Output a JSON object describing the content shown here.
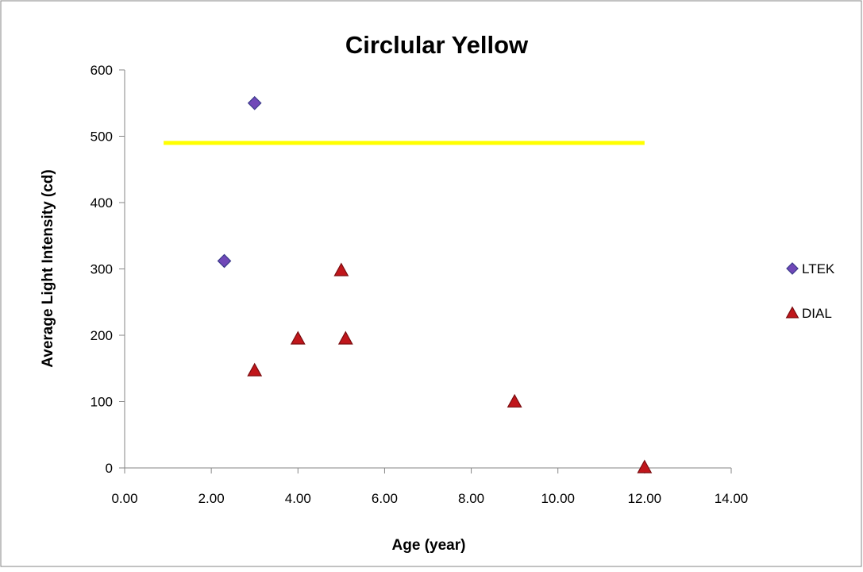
{
  "chart_data": {
    "type": "scatter",
    "title": "Circlular Yellow",
    "xlabel": "Age (year)",
    "ylabel": "Average Light Intensity (cd)",
    "xlim": [
      0,
      14
    ],
    "ylim": [
      0,
      600
    ],
    "x_ticks": [
      "0.00",
      "2.00",
      "4.00",
      "6.00",
      "8.00",
      "10.00",
      "12.00",
      "14.00"
    ],
    "y_ticks": [
      "0",
      "100",
      "200",
      "300",
      "400",
      "500",
      "600"
    ],
    "grid": false,
    "legend_position": "right",
    "series": [
      {
        "name": "LTEK",
        "marker": "diamond",
        "color": "#7048b8",
        "points": [
          {
            "x": 2.3,
            "y": 312
          },
          {
            "x": 3.0,
            "y": 550
          }
        ]
      },
      {
        "name": "DIAL",
        "marker": "triangle",
        "color": "#c0161b",
        "points": [
          {
            "x": 3.0,
            "y": 147
          },
          {
            "x": 4.0,
            "y": 195
          },
          {
            "x": 5.0,
            "y": 298
          },
          {
            "x": 5.1,
            "y": 195
          },
          {
            "x": 9.0,
            "y": 100
          },
          {
            "x": 12.0,
            "y": 1
          }
        ]
      }
    ],
    "reference_line": {
      "color": "#ffff00",
      "y": 490,
      "x_start": 0.9,
      "x_end": 12.0
    }
  }
}
